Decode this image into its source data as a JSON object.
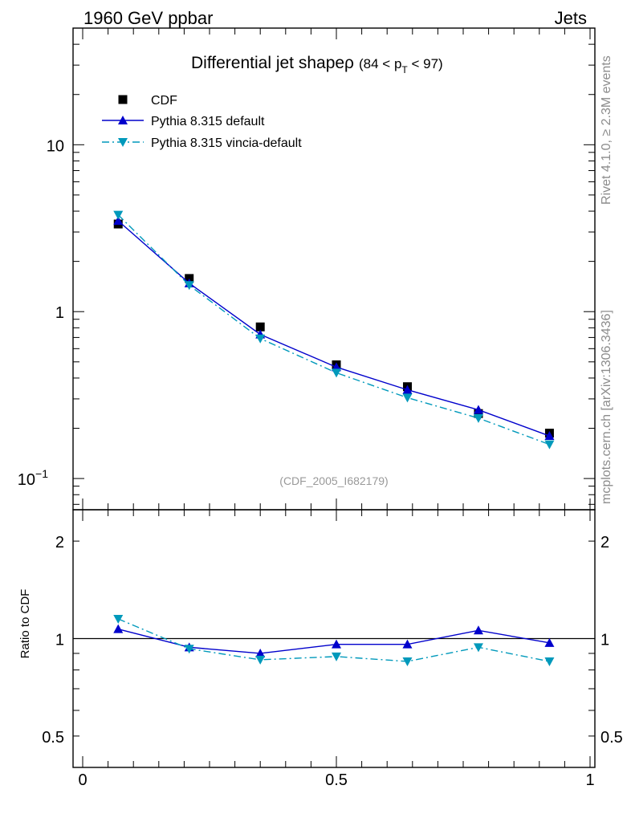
{
  "header": {
    "left": "1960 GeV ppbar",
    "right": "Jets"
  },
  "side_text": {
    "rivet": "Rivet 4.1.0, ≥ 2.3M events",
    "mcplots": "mcplots.cern.ch [arXiv:1306.3436]"
  },
  "chart_data": {
    "type": "line",
    "title": "Differential jet shapeρ",
    "title_cut_prefix": "(84 < p",
    "title_cut_sub": "T",
    "title_cut_suffix": " < 97)",
    "analysis_id": "(CDF_2005_I682179)",
    "x": [
      0.07,
      0.21,
      0.35,
      0.5,
      0.64,
      0.78,
      0.92
    ],
    "xlim": [
      0,
      1
    ],
    "x_ticks": [
      {
        "value": 0,
        "label": "0"
      },
      {
        "value": 0.5,
        "label": "0.5"
      },
      {
        "value": 1,
        "label": "1"
      }
    ],
    "main": {
      "scale": "log",
      "ylim": [
        0.065,
        50
      ],
      "y_tick_labels": [
        {
          "value": 10,
          "label": "10"
        },
        {
          "value": 1,
          "label": "1"
        },
        {
          "value": 0.1,
          "label": "10",
          "sup": "−1"
        }
      ],
      "series": [
        {
          "name": "CDF",
          "style": "markers",
          "color": "#000000",
          "values": [
            3.35,
            1.58,
            0.81,
            0.48,
            0.355,
            0.245,
            0.187
          ]
        },
        {
          "name": "Pythia 8.315 default",
          "style": "solid-triangle-up",
          "color": "#0000cc",
          "values": [
            3.5,
            1.48,
            0.73,
            0.465,
            0.34,
            0.258,
            0.18
          ]
        },
        {
          "name": "Pythia 8.315 vincia-default",
          "style": "dashdot-triangle-down",
          "color": "#0099bb",
          "values": [
            3.8,
            1.44,
            0.69,
            0.43,
            0.305,
            0.23,
            0.16
          ]
        }
      ]
    },
    "ratio": {
      "ylabel": "Ratio to CDF",
      "scale": "log",
      "ylim": [
        0.4,
        2.5
      ],
      "y_tick_labels": [
        {
          "value": 2,
          "label": "2"
        },
        {
          "value": 1,
          "label": "1"
        },
        {
          "value": 0.5,
          "label": "0.5"
        }
      ],
      "series": [
        {
          "name": "Pythia 8.315 default",
          "color": "#0000cc",
          "values": [
            1.07,
            0.94,
            0.9,
            0.96,
            0.96,
            1.06,
            0.97
          ]
        },
        {
          "name": "Pythia 8.315 vincia-default",
          "color": "#0099bb",
          "values": [
            1.15,
            0.93,
            0.86,
            0.88,
            0.85,
            0.94,
            0.85
          ]
        }
      ]
    }
  }
}
